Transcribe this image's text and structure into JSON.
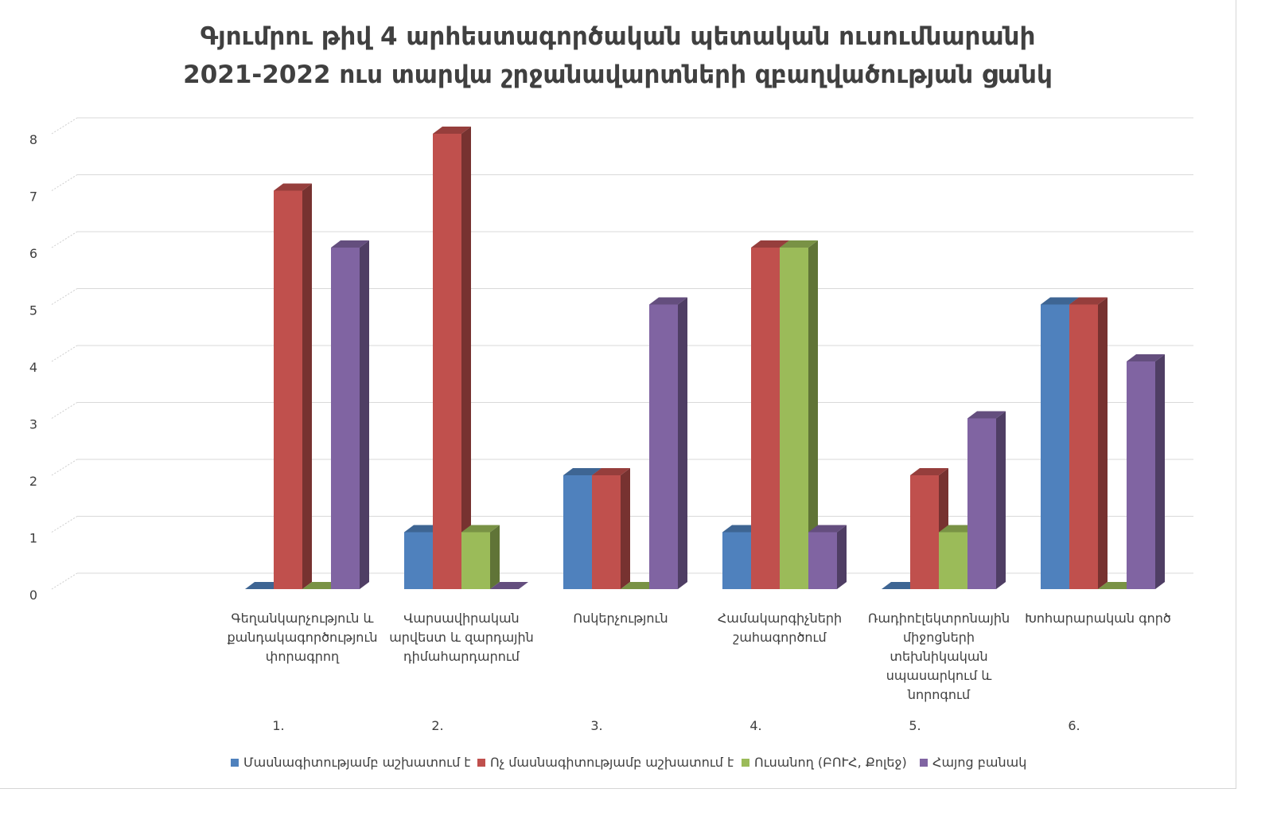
{
  "chart_data": {
    "type": "bar",
    "title": "Գյումրու թիվ 4 արհեստագործական պետական ուսումնարանի",
    "subtitle": "2021-2022   ուս տարվա շրջանավարտների զբաղվածության ցանկ",
    "categories": [
      "Գեղանկարչություն և քանդակագործություն փորագրող",
      "Վարսավիրական արվեստ և զարդային դիմահարդարում",
      "Ոսկերչություն",
      "Համակարգիչների շահագործում",
      "Ռադիոէլեկտրոնային միջոցների տեխնիկական սպասարկում և նորոգում",
      "Խոհարարական գործ"
    ],
    "category_numbers": [
      "1.",
      "2.",
      "3.",
      "4.",
      "5.",
      "6."
    ],
    "series": [
      {
        "name": "Մասնագիտությամբ աշխատում է",
        "color": "#4f81bd",
        "values": [
          0,
          1,
          2,
          1,
          0,
          5
        ]
      },
      {
        "name": "Ոչ մասնագիտությամբ աշխատում է",
        "color": "#c0504d",
        "values": [
          7,
          8,
          2,
          6,
          2,
          5
        ]
      },
      {
        "name": "Ուսանող (ԲՈՒՀ, Քոլեջ)",
        "color": "#9bbb59",
        "values": [
          0,
          1,
          0,
          6,
          1,
          0
        ]
      },
      {
        "name": "Հայոց բանակ",
        "color": "#8064a2",
        "values": [
          6,
          0,
          5,
          1,
          3,
          4
        ]
      }
    ],
    "yticks": [
      "0",
      "1",
      "2",
      "3",
      "4",
      "5",
      "6",
      "7",
      "8"
    ],
    "ylim": [
      0,
      8
    ],
    "grid": true,
    "legend_position": "bottom"
  }
}
